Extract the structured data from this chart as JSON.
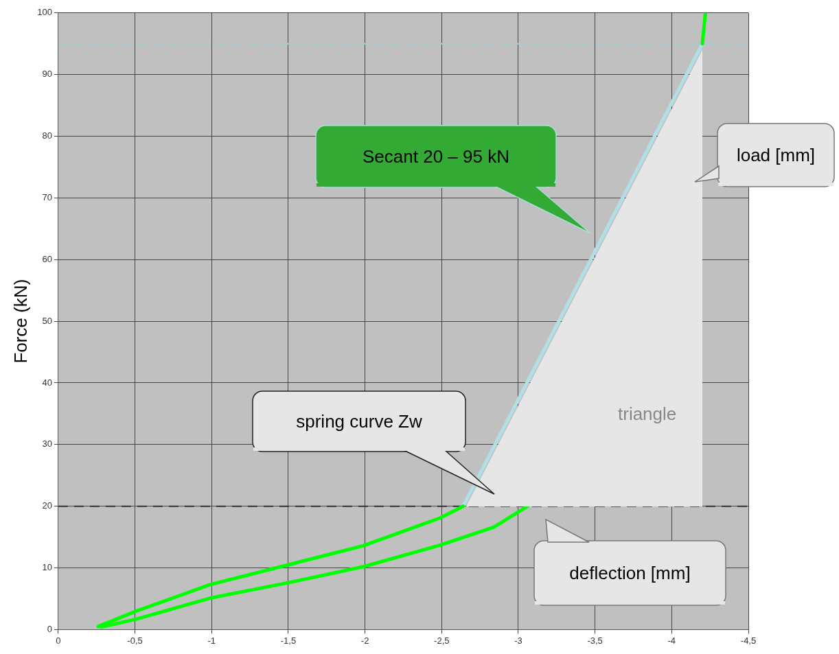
{
  "chart_data": {
    "type": "line",
    "ylabel": "Force (kN)",
    "xlim": [
      0,
      -4.5
    ],
    "ylim": [
      0,
      100
    ],
    "xticks": [
      0,
      {
        "value": -0.5,
        "label": "-0,5"
      },
      -1,
      {
        "value": -1.5,
        "label": "-1,5"
      },
      -2,
      {
        "value": -2.5,
        "label": "-2,5"
      },
      -3,
      {
        "value": -3.5,
        "label": "-3,5"
      },
      -4,
      {
        "value": -4.5,
        "label": "-4,5"
      }
    ],
    "yticks": [
      0,
      10,
      20,
      30,
      40,
      50,
      60,
      70,
      80,
      90,
      100
    ],
    "grid": true,
    "legend": false,
    "marker": "none",
    "line_style": "solid",
    "series": [
      {
        "color": "#b0e0e6",
        "x": [
          -2.64,
          -4.2
        ],
        "values": [
          20,
          95
        ]
      },
      {
        "color": "#00ff00",
        "x": [
          -0.26,
          -0.51,
          -0.99,
          -1.5,
          -1.99,
          -2.49,
          -2.64
        ],
        "values": [
          0.5,
          3,
          7.3,
          10.5,
          13.6,
          18.1,
          20
        ]
      },
      {
        "color": "#00ff00",
        "x": [
          -0.28,
          -0.51,
          -0.99,
          -1.5,
          -1.99,
          -2.49,
          -2.84,
          -3.06
        ],
        "values": [
          0.4,
          1.7,
          5.1,
          7.6,
          10.2,
          13.7,
          16.6,
          20
        ]
      },
      {
        "color": "#00ff00",
        "x": [
          -4.2,
          -4.22
        ],
        "values": [
          95,
          100
        ]
      }
    ],
    "ref_lines": [
      {
        "axis": "y",
        "value": 95,
        "color": "#a0d0d4",
        "line_style": "dashed"
      },
      {
        "axis": "y",
        "value": 20,
        "color": "#333333",
        "line_style": "dashed"
      }
    ],
    "annotations": [
      "Secant 20 – 95 kN",
      "load [mm]",
      "spring curve Zw",
      "deflection [mm]",
      "triangle"
    ]
  }
}
